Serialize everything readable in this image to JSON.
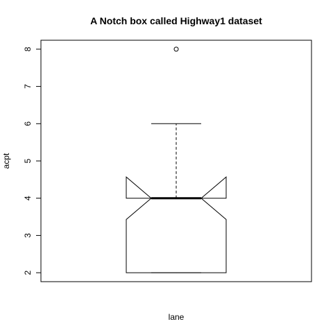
{
  "chart_data": {
    "type": "boxplot",
    "title": "A Notch box called Highway1 dataset",
    "xlabel": "lane",
    "ylabel": "acpt",
    "ylim": [
      1.76,
      8.24
    ],
    "yticks": [
      2,
      3,
      4,
      5,
      6,
      7,
      8
    ],
    "notch": true,
    "series": [
      {
        "min": 2,
        "q1": 2,
        "median": 4,
        "q3": 4,
        "max": 6,
        "notch_lower": 3.43,
        "notch_upper": 4.57,
        "outliers": [
          8
        ]
      }
    ],
    "grid": false,
    "legend": "none"
  }
}
